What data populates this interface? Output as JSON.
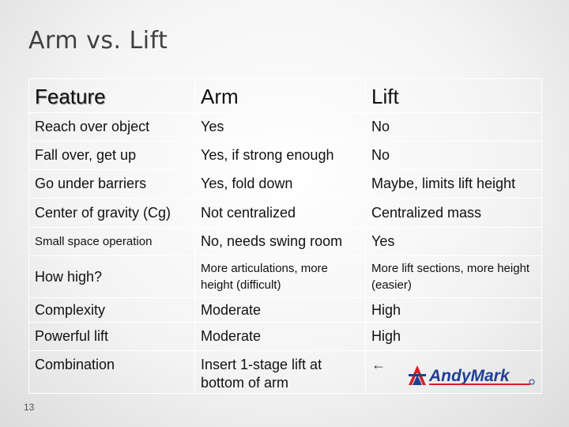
{
  "title": "Arm vs. Lift",
  "table": {
    "header": [
      "Feature",
      "Arm",
      "Lift"
    ],
    "rows": [
      [
        "Reach over object",
        "Yes",
        "No"
      ],
      [
        "Fall over, get up",
        "Yes, if strong enough",
        "No"
      ],
      [
        "Go under barriers",
        "Yes, fold down",
        "Maybe, limits lift height"
      ],
      [
        "Center of gravity (Cg)",
        "Not centralized",
        "Centralized mass"
      ],
      [
        "Small space operation",
        "No, needs swing room",
        "Yes"
      ],
      [
        "How high?",
        "More articulations, more height (difficult)",
        "More lift sections, more height (easier)"
      ],
      [
        "Complexity",
        "Moderate",
        "High"
      ],
      [
        "Powerful lift",
        "Moderate",
        "High"
      ],
      [
        "Combination",
        "Insert 1-stage lift at bottom of arm",
        "←"
      ]
    ]
  },
  "logo": {
    "text": "AndyMark",
    "colors": {
      "red": "#d42027",
      "blue": "#1f3f95"
    }
  },
  "slide_number": "13"
}
